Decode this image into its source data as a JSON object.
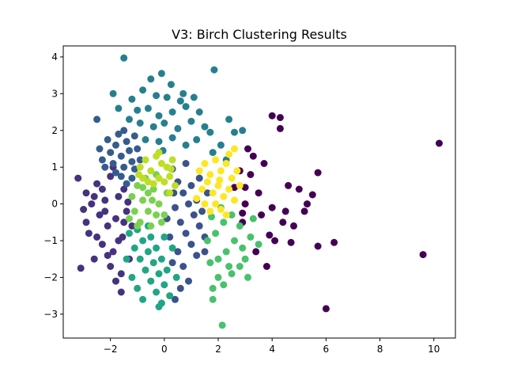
{
  "chart_data": {
    "type": "scatter",
    "title": "V3: Birch Clustering Results",
    "xlabel": "",
    "ylabel": "",
    "xlim": [
      -3.75,
      10.8
    ],
    "ylim": [
      -3.65,
      4.3
    ],
    "x_ticks": [
      "−2",
      "0",
      "2",
      "4",
      "6",
      "8",
      "10"
    ],
    "y_ticks": [
      "−3",
      "−2",
      "−1",
      "0",
      "1",
      "2",
      "3",
      "4"
    ],
    "grid": false,
    "legend": "none",
    "colors": {
      "c0": "#440154",
      "c1": "#46327e",
      "c2": "#365c8d",
      "c3": "#277f8e",
      "c4": "#3b528b",
      "c5": "#21a685",
      "c6": "#4ac16d",
      "c7": "#7ad151",
      "c8": "#bddf26",
      "c9": "#fde725"
    },
    "series": [
      {
        "cluster": "c0",
        "points": [
          [
            10.2,
            1.65
          ],
          [
            9.6,
            -1.38
          ],
          [
            6.0,
            -2.85
          ],
          [
            6.3,
            -1.05
          ],
          [
            5.7,
            -1.15
          ],
          [
            5.7,
            0.85
          ],
          [
            5.5,
            0.25
          ],
          [
            5.2,
            -0.2
          ],
          [
            5.0,
            0.4
          ],
          [
            4.8,
            -0.6
          ],
          [
            4.6,
            0.5
          ],
          [
            4.5,
            -0.2
          ],
          [
            4.3,
            2.05
          ],
          [
            4.3,
            2.35
          ],
          [
            4.0,
            2.4
          ],
          [
            4.0,
            -0.1
          ],
          [
            3.9,
            -0.85
          ],
          [
            3.8,
            -1.7
          ],
          [
            3.6,
            -0.3
          ],
          [
            3.5,
            0.3
          ],
          [
            3.3,
            1.3
          ],
          [
            3.2,
            0.8
          ],
          [
            3.1,
            1.5
          ],
          [
            3.0,
            0.0
          ],
          [
            2.9,
            -0.5
          ],
          [
            2.8,
            0.9
          ],
          [
            3.4,
            -1.3
          ],
          [
            2.6,
            0.45
          ],
          [
            4.7,
            -1.05
          ],
          [
            5.3,
            0.0
          ],
          [
            3.7,
            1.1
          ],
          [
            2.9,
            -0.25
          ],
          [
            4.1,
            -1.0
          ],
          [
            4.4,
            -0.5
          ],
          [
            3.0,
            0.45
          ]
        ]
      },
      {
        "cluster": "c1",
        "points": [
          [
            -3.1,
            -1.75
          ],
          [
            -3.2,
            0.7
          ],
          [
            -3.0,
            -0.15
          ],
          [
            -2.9,
            0.3
          ],
          [
            -2.8,
            -0.8
          ],
          [
            -2.6,
            -1.5
          ],
          [
            -2.5,
            0.55
          ],
          [
            -2.4,
            -0.3
          ],
          [
            -2.3,
            -1.1
          ],
          [
            -2.2,
            0.1
          ],
          [
            -2.1,
            -0.6
          ],
          [
            -2.0,
            0.75
          ],
          [
            -1.9,
            -1.3
          ],
          [
            -1.8,
            -0.4
          ],
          [
            -1.7,
            0.2
          ],
          [
            -1.6,
            -1.9
          ],
          [
            -1.55,
            -0.9
          ],
          [
            -1.5,
            0.4
          ],
          [
            -1.4,
            -0.2
          ],
          [
            -1.6,
            -2.4
          ],
          [
            -1.3,
            -1.5
          ],
          [
            -2.5,
            -0.9
          ],
          [
            -2.7,
            0.0
          ],
          [
            -1.9,
            1.0
          ],
          [
            -2.3,
            0.4
          ],
          [
            -1.2,
            -0.6
          ],
          [
            -2.0,
            -1.7
          ],
          [
            -1.8,
            -2.1
          ],
          [
            -2.9,
            -0.5
          ],
          [
            -2.2,
            -0.2
          ],
          [
            -1.7,
            -1.0
          ],
          [
            -1.5,
            -0.5
          ],
          [
            -1.35,
            0.05
          ],
          [
            -2.6,
            0.2
          ],
          [
            -2.1,
            -1.4
          ]
        ]
      },
      {
        "cluster": "c2",
        "points": [
          [
            -2.4,
            1.5
          ],
          [
            -2.3,
            1.2
          ],
          [
            -2.1,
            1.75
          ],
          [
            -2.0,
            1.4
          ],
          [
            -1.9,
            1.1
          ],
          [
            -1.8,
            1.6
          ],
          [
            -1.7,
            1.9
          ],
          [
            -1.6,
            1.3
          ],
          [
            -1.5,
            1.0
          ],
          [
            -1.4,
            1.7
          ],
          [
            -1.3,
            1.45
          ],
          [
            -1.2,
            1.15
          ],
          [
            -1.1,
            1.85
          ],
          [
            -1.0,
            1.5
          ],
          [
            -0.9,
            1.2
          ],
          [
            -1.6,
            0.75
          ],
          [
            -1.4,
            0.55
          ],
          [
            -2.2,
            1.0
          ],
          [
            -1.8,
            0.85
          ],
          [
            -1.2,
            0.7
          ],
          [
            -2.5,
            2.3
          ],
          [
            -1.5,
            2.0
          ],
          [
            -1.1,
            0.95
          ]
        ]
      },
      {
        "cluster": "c3",
        "points": [
          [
            -1.5,
            3.97
          ],
          [
            -0.5,
            3.4
          ],
          [
            -0.1,
            3.55
          ],
          [
            0.25,
            3.25
          ],
          [
            1.85,
            3.65
          ],
          [
            -1.9,
            3.0
          ],
          [
            -1.2,
            2.85
          ],
          [
            -0.8,
            3.1
          ],
          [
            -0.3,
            2.95
          ],
          [
            0.1,
            2.9
          ],
          [
            0.7,
            3.0
          ],
          [
            1.1,
            2.9
          ],
          [
            -1.7,
            2.6
          ],
          [
            -1.0,
            2.55
          ],
          [
            -0.6,
            2.6
          ],
          [
            -0.2,
            2.4
          ],
          [
            0.3,
            2.5
          ],
          [
            0.8,
            2.65
          ],
          [
            1.3,
            2.5
          ],
          [
            -0.9,
            2.2
          ],
          [
            -0.4,
            2.1
          ],
          [
            0.0,
            2.2
          ],
          [
            0.5,
            2.05
          ],
          [
            1.0,
            2.25
          ],
          [
            1.5,
            2.1
          ],
          [
            -0.7,
            1.75
          ],
          [
            -0.2,
            1.7
          ],
          [
            0.3,
            1.8
          ],
          [
            0.8,
            1.6
          ],
          [
            1.2,
            1.75
          ],
          [
            1.7,
            1.95
          ],
          [
            2.1,
            1.6
          ],
          [
            2.4,
            2.3
          ],
          [
            2.6,
            1.95
          ],
          [
            2.9,
            2.0
          ],
          [
            1.8,
            1.4
          ],
          [
            2.3,
            1.2
          ],
          [
            -1.3,
            2.3
          ],
          [
            0.6,
            2.8
          ],
          [
            -0.05,
            1.45
          ]
        ]
      },
      {
        "cluster": "c4",
        "points": [
          [
            0.3,
            0.95
          ],
          [
            0.5,
            0.6
          ],
          [
            0.7,
            0.3
          ],
          [
            0.9,
            0.0
          ],
          [
            1.1,
            -0.3
          ],
          [
            1.3,
            -0.6
          ],
          [
            1.5,
            -0.9
          ],
          [
            0.4,
            -0.1
          ],
          [
            0.6,
            -0.5
          ],
          [
            0.8,
            -0.8
          ],
          [
            1.0,
            -1.1
          ],
          [
            1.2,
            -1.4
          ],
          [
            0.2,
            -0.9
          ],
          [
            0.5,
            -1.3
          ],
          [
            0.7,
            -1.7
          ],
          [
            0.9,
            -2.1
          ],
          [
            0.6,
            -2.3
          ],
          [
            1.0,
            0.5
          ],
          [
            1.2,
            0.1
          ],
          [
            1.4,
            -0.2
          ],
          [
            1.6,
            0.3
          ],
          [
            1.3,
            0.7
          ],
          [
            0.35,
            0.3
          ],
          [
            0.1,
            -0.4
          ],
          [
            0.8,
            1.1
          ],
          [
            1.5,
            -1.3
          ],
          [
            0.3,
            -1.6
          ],
          [
            0.4,
            -2.6
          ]
        ]
      },
      {
        "cluster": "c5",
        "points": [
          [
            -1.3,
            -0.8
          ],
          [
            -1.1,
            -1.2
          ],
          [
            -0.9,
            -1.5
          ],
          [
            -0.7,
            -1.8
          ],
          [
            -0.5,
            -2.1
          ],
          [
            -0.3,
            -2.4
          ],
          [
            -0.1,
            -2.7
          ],
          [
            -1.0,
            -0.7
          ],
          [
            -0.8,
            -1.0
          ],
          [
            -0.6,
            -1.3
          ],
          [
            -0.4,
            -1.6
          ],
          [
            -0.2,
            -1.9
          ],
          [
            0.0,
            -2.2
          ],
          [
            0.2,
            -2.5
          ],
          [
            -0.5,
            -0.9
          ],
          [
            -0.3,
            -1.2
          ],
          [
            -0.1,
            -1.5
          ],
          [
            0.1,
            -1.8
          ],
          [
            -1.2,
            -2.0
          ],
          [
            -1.0,
            -2.3
          ],
          [
            -0.8,
            -2.6
          ],
          [
            0.3,
            -1.2
          ],
          [
            -0.6,
            -0.6
          ],
          [
            0.0,
            -0.9
          ],
          [
            -1.4,
            -1.5
          ],
          [
            -0.2,
            -2.8
          ],
          [
            0.45,
            -2.0
          ]
        ]
      },
      {
        "cluster": "c6",
        "points": [
          [
            2.15,
            -3.3
          ],
          [
            1.8,
            -2.6
          ],
          [
            1.8,
            -2.3
          ],
          [
            2.0,
            -2.0
          ],
          [
            2.2,
            -2.2
          ],
          [
            2.5,
            -1.9
          ],
          [
            2.8,
            -1.7
          ],
          [
            3.1,
            -2.0
          ],
          [
            1.7,
            -1.6
          ],
          [
            2.0,
            -1.5
          ],
          [
            2.3,
            -1.3
          ],
          [
            2.6,
            -1.0
          ],
          [
            2.9,
            -1.2
          ],
          [
            3.2,
            -0.9
          ],
          [
            3.5,
            -1.1
          ],
          [
            1.6,
            -1.0
          ],
          [
            1.9,
            -0.8
          ],
          [
            2.2,
            -0.5
          ],
          [
            2.5,
            -0.3
          ],
          [
            2.8,
            -0.6
          ],
          [
            3.0,
            -1.5
          ],
          [
            2.4,
            -1.7
          ],
          [
            1.75,
            -0.35
          ],
          [
            2.1,
            -0.1
          ],
          [
            3.3,
            -0.4
          ]
        ]
      },
      {
        "cluster": "c7",
        "points": [
          [
            -1.2,
            0.2
          ],
          [
            -1.0,
            0.5
          ],
          [
            -0.8,
            0.1
          ],
          [
            -0.6,
            -0.2
          ],
          [
            -0.4,
            0.4
          ],
          [
            -0.2,
            0.0
          ],
          [
            0.0,
            -0.3
          ],
          [
            -1.1,
            -0.2
          ],
          [
            -0.9,
            -0.5
          ],
          [
            -0.7,
            0.7
          ],
          [
            -0.5,
            -0.6
          ],
          [
            -0.3,
            0.8
          ],
          [
            -0.1,
            -0.5
          ],
          [
            0.1,
            0.3
          ],
          [
            -1.3,
            -0.4
          ],
          [
            -0.6,
            0.3
          ],
          [
            -0.3,
            -0.3
          ],
          [
            -0.8,
            0.45
          ],
          [
            -1.0,
            -0.6
          ],
          [
            -0.45,
            0.1
          ]
        ]
      },
      {
        "cluster": "c8",
        "points": [
          [
            -0.9,
            1.0
          ],
          [
            -0.7,
            1.2
          ],
          [
            -0.5,
            0.9
          ],
          [
            -0.3,
            1.3
          ],
          [
            -0.1,
            1.1
          ],
          [
            0.1,
            1.0
          ],
          [
            0.3,
            1.2
          ],
          [
            -0.8,
            0.7
          ],
          [
            -0.6,
            0.6
          ],
          [
            -0.4,
            0.55
          ],
          [
            -0.2,
            0.7
          ],
          [
            0.0,
            0.6
          ],
          [
            0.2,
            0.75
          ],
          [
            0.4,
            0.5
          ],
          [
            0.2,
            0.3
          ],
          [
            -0.2,
            1.4
          ],
          [
            0.25,
            0.95
          ],
          [
            -0.95,
            0.8
          ]
        ]
      },
      {
        "cluster": "c9",
        "points": [
          [
            1.3,
            0.9
          ],
          [
            1.5,
            1.1
          ],
          [
            1.7,
            0.8
          ],
          [
            1.9,
            1.2
          ],
          [
            2.1,
            0.9
          ],
          [
            2.3,
            1.1
          ],
          [
            2.5,
            0.7
          ],
          [
            2.7,
            0.9
          ],
          [
            1.4,
            0.4
          ],
          [
            1.6,
            0.6
          ],
          [
            1.8,
            0.3
          ],
          [
            2.0,
            0.5
          ],
          [
            2.2,
            0.2
          ],
          [
            2.4,
            0.4
          ],
          [
            2.6,
            0.1
          ],
          [
            1.5,
            0.0
          ],
          [
            1.7,
            -0.2
          ],
          [
            1.9,
            0.0
          ],
          [
            2.1,
            -0.15
          ],
          [
            2.3,
            -0.3
          ],
          [
            2.8,
            0.5
          ],
          [
            2.4,
            1.35
          ],
          [
            1.2,
            0.15
          ],
          [
            2.05,
            0.65
          ],
          [
            2.6,
            1.5
          ]
        ]
      }
    ]
  }
}
